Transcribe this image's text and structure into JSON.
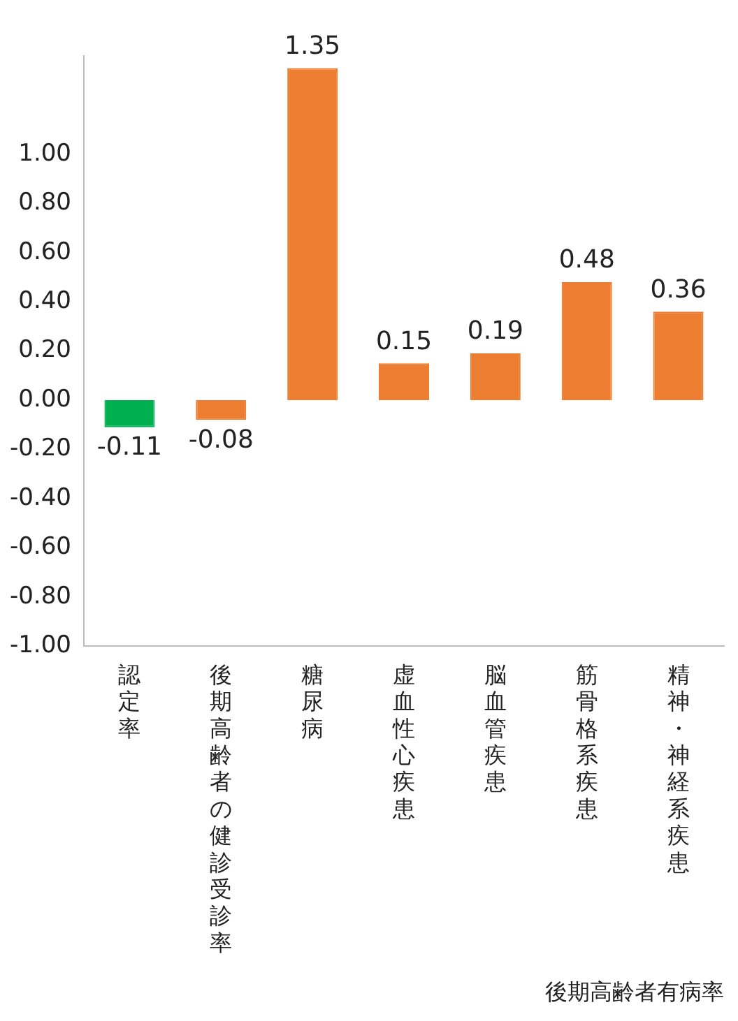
{
  "chart_data": {
    "type": "bar",
    "xlabel": "後期高齢者有病率",
    "categories": [
      "認定率",
      "後期高齢者の健診受診率",
      "糖尿病",
      "虚血性心疾患",
      "脳血管疾患",
      "筋骨格系疾患",
      "精神・神経系疾患"
    ],
    "values": [
      -0.11,
      -0.08,
      1.35,
      0.15,
      0.19,
      0.48,
      0.36
    ],
    "colors": [
      "#00b050",
      "#ed7d31",
      "#ed7d31",
      "#ed7d31",
      "#ed7d31",
      "#ed7d31",
      "#ed7d31"
    ],
    "ylim": [
      -1,
      1.4
    ],
    "yticks": [
      {
        "value": -1,
        "label": "-1.00"
      },
      {
        "value": -0.8,
        "label": "-0.80"
      },
      {
        "value": -0.6,
        "label": "-0.60"
      },
      {
        "value": -0.4,
        "label": "-0.40"
      },
      {
        "value": -0.2,
        "label": "-0.20"
      },
      {
        "value": 0,
        "label": "0.00"
      },
      {
        "value": 0.2,
        "label": "0.20"
      },
      {
        "value": 0.4,
        "label": "0.40"
      },
      {
        "value": 0.6,
        "label": "0.60"
      },
      {
        "value": 0.8,
        "label": "0.80"
      },
      {
        "value": 1,
        "label": "1.00"
      }
    ],
    "data_labels": true,
    "grid": false,
    "legend": false
  }
}
